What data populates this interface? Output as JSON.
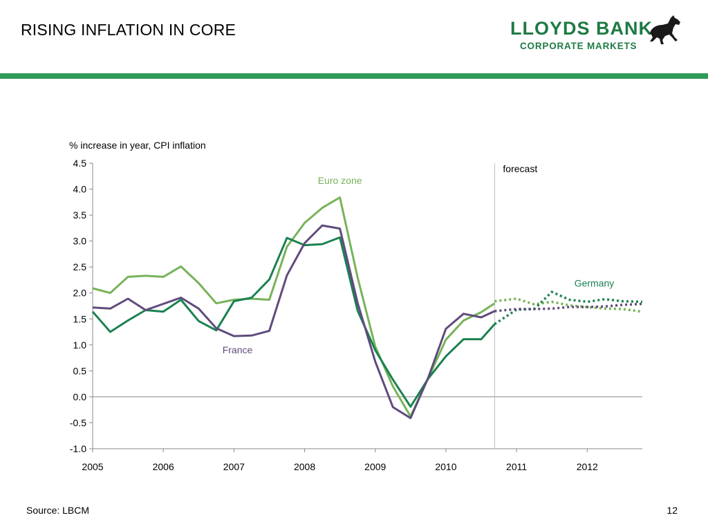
{
  "slide": {
    "title": "RISING INFLATION IN CORE",
    "source": "Source: LBCM",
    "page_number": "12"
  },
  "logo": {
    "line1": "LLOYDS BANK",
    "line2": "CORPORATE MARKETS",
    "color": "#1f7a45",
    "icon": "black-horse-icon"
  },
  "colors": {
    "header_bar": "#2e9b57",
    "euro_zone": "#77b259",
    "germany": "#1b8150",
    "france": "#5f4b7c",
    "divider": "#bdbdbd"
  },
  "chart_data": {
    "type": "line",
    "ylabel": "% increase in year, CPI inflation",
    "ylim": [
      -1.0,
      4.5
    ],
    "yticks": [
      "4.5",
      "4.0",
      "3.5",
      "3.0",
      "2.5",
      "2.0",
      "1.5",
      "1.0",
      "0.5",
      "0.0",
      "-0.5",
      "-1.0"
    ],
    "ytick_values": [
      4.5,
      4.0,
      3.5,
      3.0,
      2.5,
      2.0,
      1.5,
      1.0,
      0.5,
      0.0,
      -0.5,
      -1.0
    ],
    "xticks": [
      "2005",
      "2006",
      "2007",
      "2008",
      "2009",
      "2010",
      "2011",
      "2012"
    ],
    "xtick_values": [
      2005,
      2006,
      2007,
      2008,
      2009,
      2010,
      2011,
      2012
    ],
    "xlim": [
      2005,
      2012.78
    ],
    "forecast_start": 2010.69,
    "forecast_label": "forecast",
    "grid": false,
    "series": [
      {
        "name": "Euro zone",
        "key": "euro_zone",
        "actual": {
          "x": [
            2005,
            2005.25,
            2005.5,
            2005.75,
            2006,
            2006.25,
            2006.5,
            2006.75,
            2007,
            2007.25,
            2007.5,
            2007.75,
            2008,
            2008.25,
            2008.5,
            2008.75,
            2009,
            2009.25,
            2009.5,
            2009.75,
            2010,
            2010.25,
            2010.5,
            2010.69
          ],
          "y": [
            2.09,
            2.0,
            2.31,
            2.33,
            2.31,
            2.51,
            2.19,
            1.8,
            1.87,
            1.89,
            1.87,
            2.89,
            3.35,
            3.64,
            3.84,
            2.3,
            0.97,
            0.2,
            -0.38,
            0.36,
            1.1,
            1.47,
            1.63,
            1.8
          ]
        },
        "forecast": {
          "x": [
            2010.69,
            2011,
            2011.25,
            2011.5,
            2011.75,
            2012,
            2012.25,
            2012.5,
            2012.78
          ],
          "y": [
            1.84,
            1.89,
            1.78,
            1.83,
            1.76,
            1.73,
            1.7,
            1.69,
            1.64
          ]
        }
      },
      {
        "name": "Germany",
        "key": "germany",
        "actual": {
          "x": [
            2005,
            2005.25,
            2005.5,
            2005.75,
            2006,
            2006.25,
            2006.5,
            2006.75,
            2007,
            2007.25,
            2007.5,
            2007.75,
            2008,
            2008.25,
            2008.5,
            2008.75,
            2009,
            2009.25,
            2009.5,
            2009.75,
            2010,
            2010.25,
            2010.5,
            2010.69
          ],
          "y": [
            1.64,
            1.25,
            1.47,
            1.67,
            1.64,
            1.87,
            1.46,
            1.28,
            1.84,
            1.91,
            2.26,
            3.06,
            2.92,
            2.94,
            3.07,
            1.66,
            0.9,
            0.33,
            -0.19,
            0.35,
            0.78,
            1.11,
            1.11,
            1.4
          ]
        },
        "forecast": {
          "x": [
            2010.69,
            2011,
            2011.25,
            2011.5,
            2011.75,
            2012,
            2012.25,
            2012.5,
            2012.78
          ],
          "y": [
            1.4,
            1.68,
            1.69,
            2.02,
            1.87,
            1.83,
            1.88,
            1.84,
            1.83
          ]
        }
      },
      {
        "name": "France",
        "key": "france",
        "actual": {
          "x": [
            2005,
            2005.25,
            2005.5,
            2005.75,
            2006,
            2006.25,
            2006.5,
            2006.75,
            2007,
            2007.25,
            2007.5,
            2007.75,
            2008,
            2008.25,
            2008.5,
            2008.75,
            2009,
            2009.25,
            2009.5,
            2009.75,
            2010,
            2010.25,
            2010.5,
            2010.69
          ],
          "y": [
            1.72,
            1.7,
            1.89,
            1.67,
            1.79,
            1.91,
            1.7,
            1.32,
            1.17,
            1.18,
            1.27,
            2.34,
            2.96,
            3.3,
            3.24,
            1.81,
            0.68,
            -0.2,
            -0.41,
            0.37,
            1.31,
            1.6,
            1.53,
            1.65
          ]
        },
        "forecast": {
          "x": [
            2010.69,
            2011,
            2011.25,
            2011.5,
            2011.75,
            2012,
            2012.25,
            2012.5,
            2012.78
          ],
          "y": [
            1.65,
            1.69,
            1.69,
            1.7,
            1.73,
            1.73,
            1.74,
            1.77,
            1.79
          ]
        }
      }
    ],
    "annotations": [
      {
        "text": "Euro zone",
        "series": "euro_zone",
        "anchor": [
          2008.5,
          4.1
        ]
      },
      {
        "text": "Germany",
        "series": "germany",
        "anchor": [
          2012.1,
          2.12
        ]
      },
      {
        "text": "France",
        "series": "france",
        "anchor": [
          2007.05,
          0.84
        ]
      }
    ]
  }
}
